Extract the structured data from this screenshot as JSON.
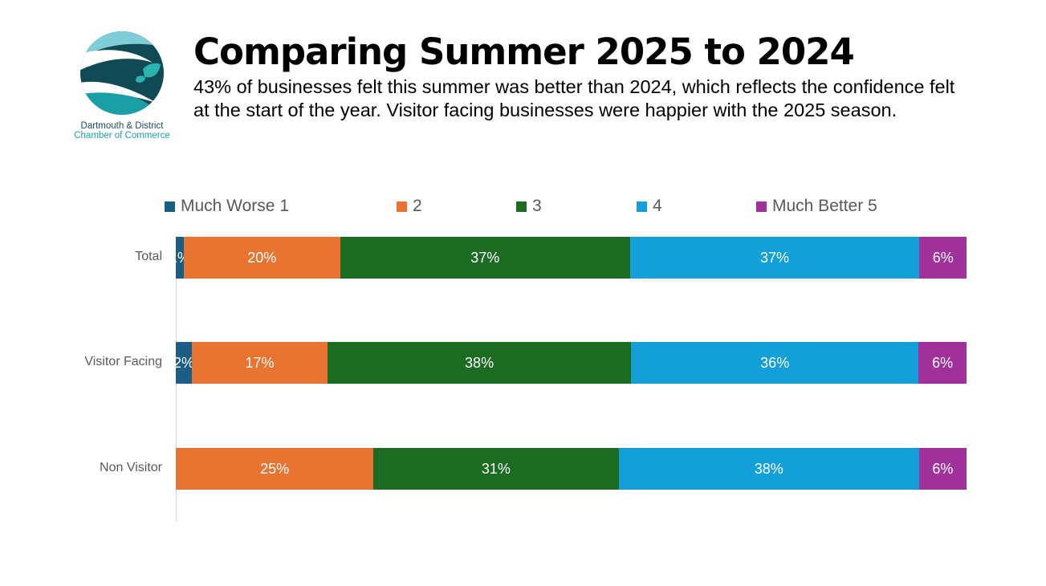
{
  "header": {
    "title": "Comparing Summer 2025 to 2024",
    "subtitle": "43% of businesses felt this summer was better than 2024, which reflects the confidence felt at the start of the year. Visitor facing businesses were happier with the 2025 season."
  },
  "logo": {
    "line1": "Dartmouth & District",
    "line2": "Chamber of Commerce"
  },
  "chart_data": {
    "type": "bar",
    "orientation": "horizontal",
    "stacked": "100%",
    "categories": [
      "Total",
      "Visitor Facing",
      "Non Visitor"
    ],
    "series": [
      {
        "name": "Much Worse 1",
        "color": "#1a5e86",
        "values": [
          1,
          2,
          0
        ],
        "labels": [
          "1%",
          "2%",
          "0"
        ]
      },
      {
        "name": "2",
        "color": "#e97331",
        "values": [
          20,
          17,
          25
        ],
        "labels": [
          "20%",
          "17%",
          "25%"
        ]
      },
      {
        "name": "3",
        "color": "#1b6b23",
        "values": [
          37,
          38,
          31
        ],
        "labels": [
          "37%",
          "38%",
          "31%"
        ]
      },
      {
        "name": "4",
        "color": "#139fd8",
        "values": [
          37,
          36,
          38
        ],
        "labels": [
          "37%",
          "36%",
          "38%"
        ]
      },
      {
        "name": "Much Better 5",
        "color": "#a0319b",
        "values": [
          6,
          6,
          6
        ],
        "labels": [
          "6%",
          "6%",
          "6%"
        ]
      }
    ],
    "legend_position": "top",
    "grid": false
  }
}
